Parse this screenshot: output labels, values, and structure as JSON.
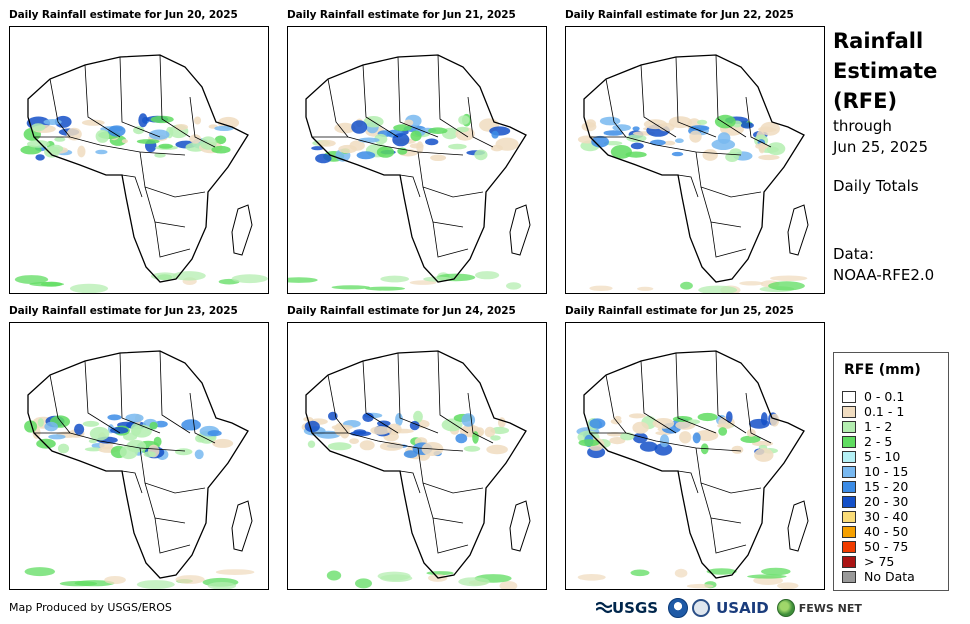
{
  "panels": [
    {
      "title": "Daily Rainfall estimate for Jun 20, 2025"
    },
    {
      "title": "Daily Rainfall estimate for Jun 21, 2025"
    },
    {
      "title": "Daily Rainfall estimate for Jun 22, 2025"
    },
    {
      "title": "Daily Rainfall estimate for Jun 23, 2025"
    },
    {
      "title": "Daily Rainfall estimate for Jun 24, 2025"
    },
    {
      "title": "Daily Rainfall estimate for Jun 25, 2025"
    }
  ],
  "side": {
    "title_line1": "Rainfall",
    "title_line2": "Estimate",
    "title_line3": "(RFE)",
    "through": "through",
    "date": "Jun 25, 2025",
    "totals": "Daily Totals",
    "data_label": "Data:",
    "data_source": "NOAA-RFE2.0"
  },
  "legend": {
    "title": "RFE (mm)",
    "items": [
      {
        "label": "0 - 0.1",
        "color": "#ffffff"
      },
      {
        "label": "0.1 - 1",
        "color": "#f0dcc0"
      },
      {
        "label": "1 - 2",
        "color": "#b4eeb0"
      },
      {
        "label": "2 - 5",
        "color": "#5fdc60"
      },
      {
        "label": "5 - 10",
        "color": "#b4f0f5"
      },
      {
        "label": "10 - 15",
        "color": "#78b8f0"
      },
      {
        "label": "15 - 20",
        "color": "#3c8ce6"
      },
      {
        "label": "20 - 30",
        "color": "#1450c8"
      },
      {
        "label": "30 - 40",
        "color": "#fadc78"
      },
      {
        "label": "40 - 50",
        "color": "#f5a000"
      },
      {
        "label": "50 - 75",
        "color": "#f03c00"
      },
      {
        "label": "> 75",
        "color": "#aa1414"
      },
      {
        "label": "No Data",
        "color": "#999999"
      }
    ]
  },
  "footer": {
    "credit": "Map Produced by USGS/EROS",
    "logo_usgs": "USGS",
    "logo_usaid": "USAID",
    "logo_fews": "FEWS NET"
  }
}
